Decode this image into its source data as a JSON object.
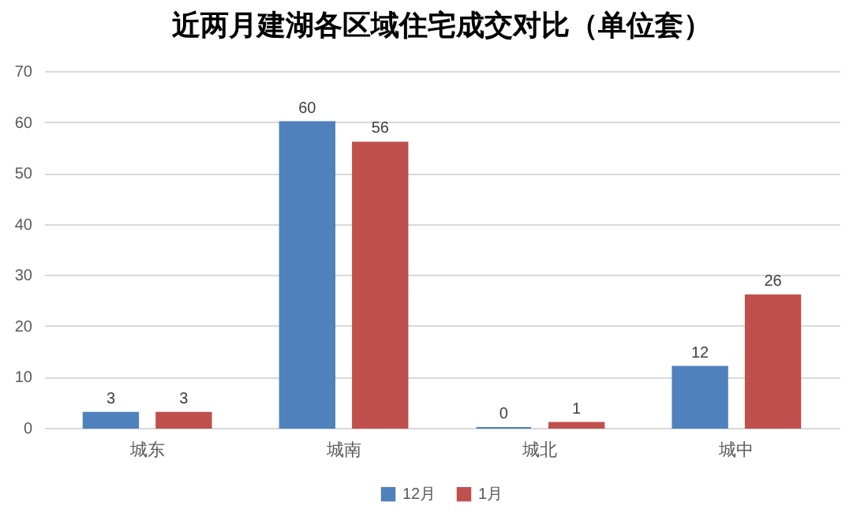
{
  "chart_data": {
    "type": "bar",
    "title": "近两月建湖各区域住宅成交对比（单位套）",
    "categories": [
      "城东",
      "城南",
      "城北",
      "城中"
    ],
    "series": [
      {
        "name": "12月",
        "color": "#4f81bd",
        "values": [
          3,
          60,
          0,
          12
        ]
      },
      {
        "name": "1月",
        "color": "#c0504d",
        "values": [
          3,
          56,
          1,
          26
        ]
      }
    ],
    "ylim": [
      0,
      70
    ],
    "yticks": [
      0,
      10,
      20,
      30,
      40,
      50,
      60,
      70
    ],
    "grid": "y",
    "legend": "bottom",
    "data_labels": true
  }
}
